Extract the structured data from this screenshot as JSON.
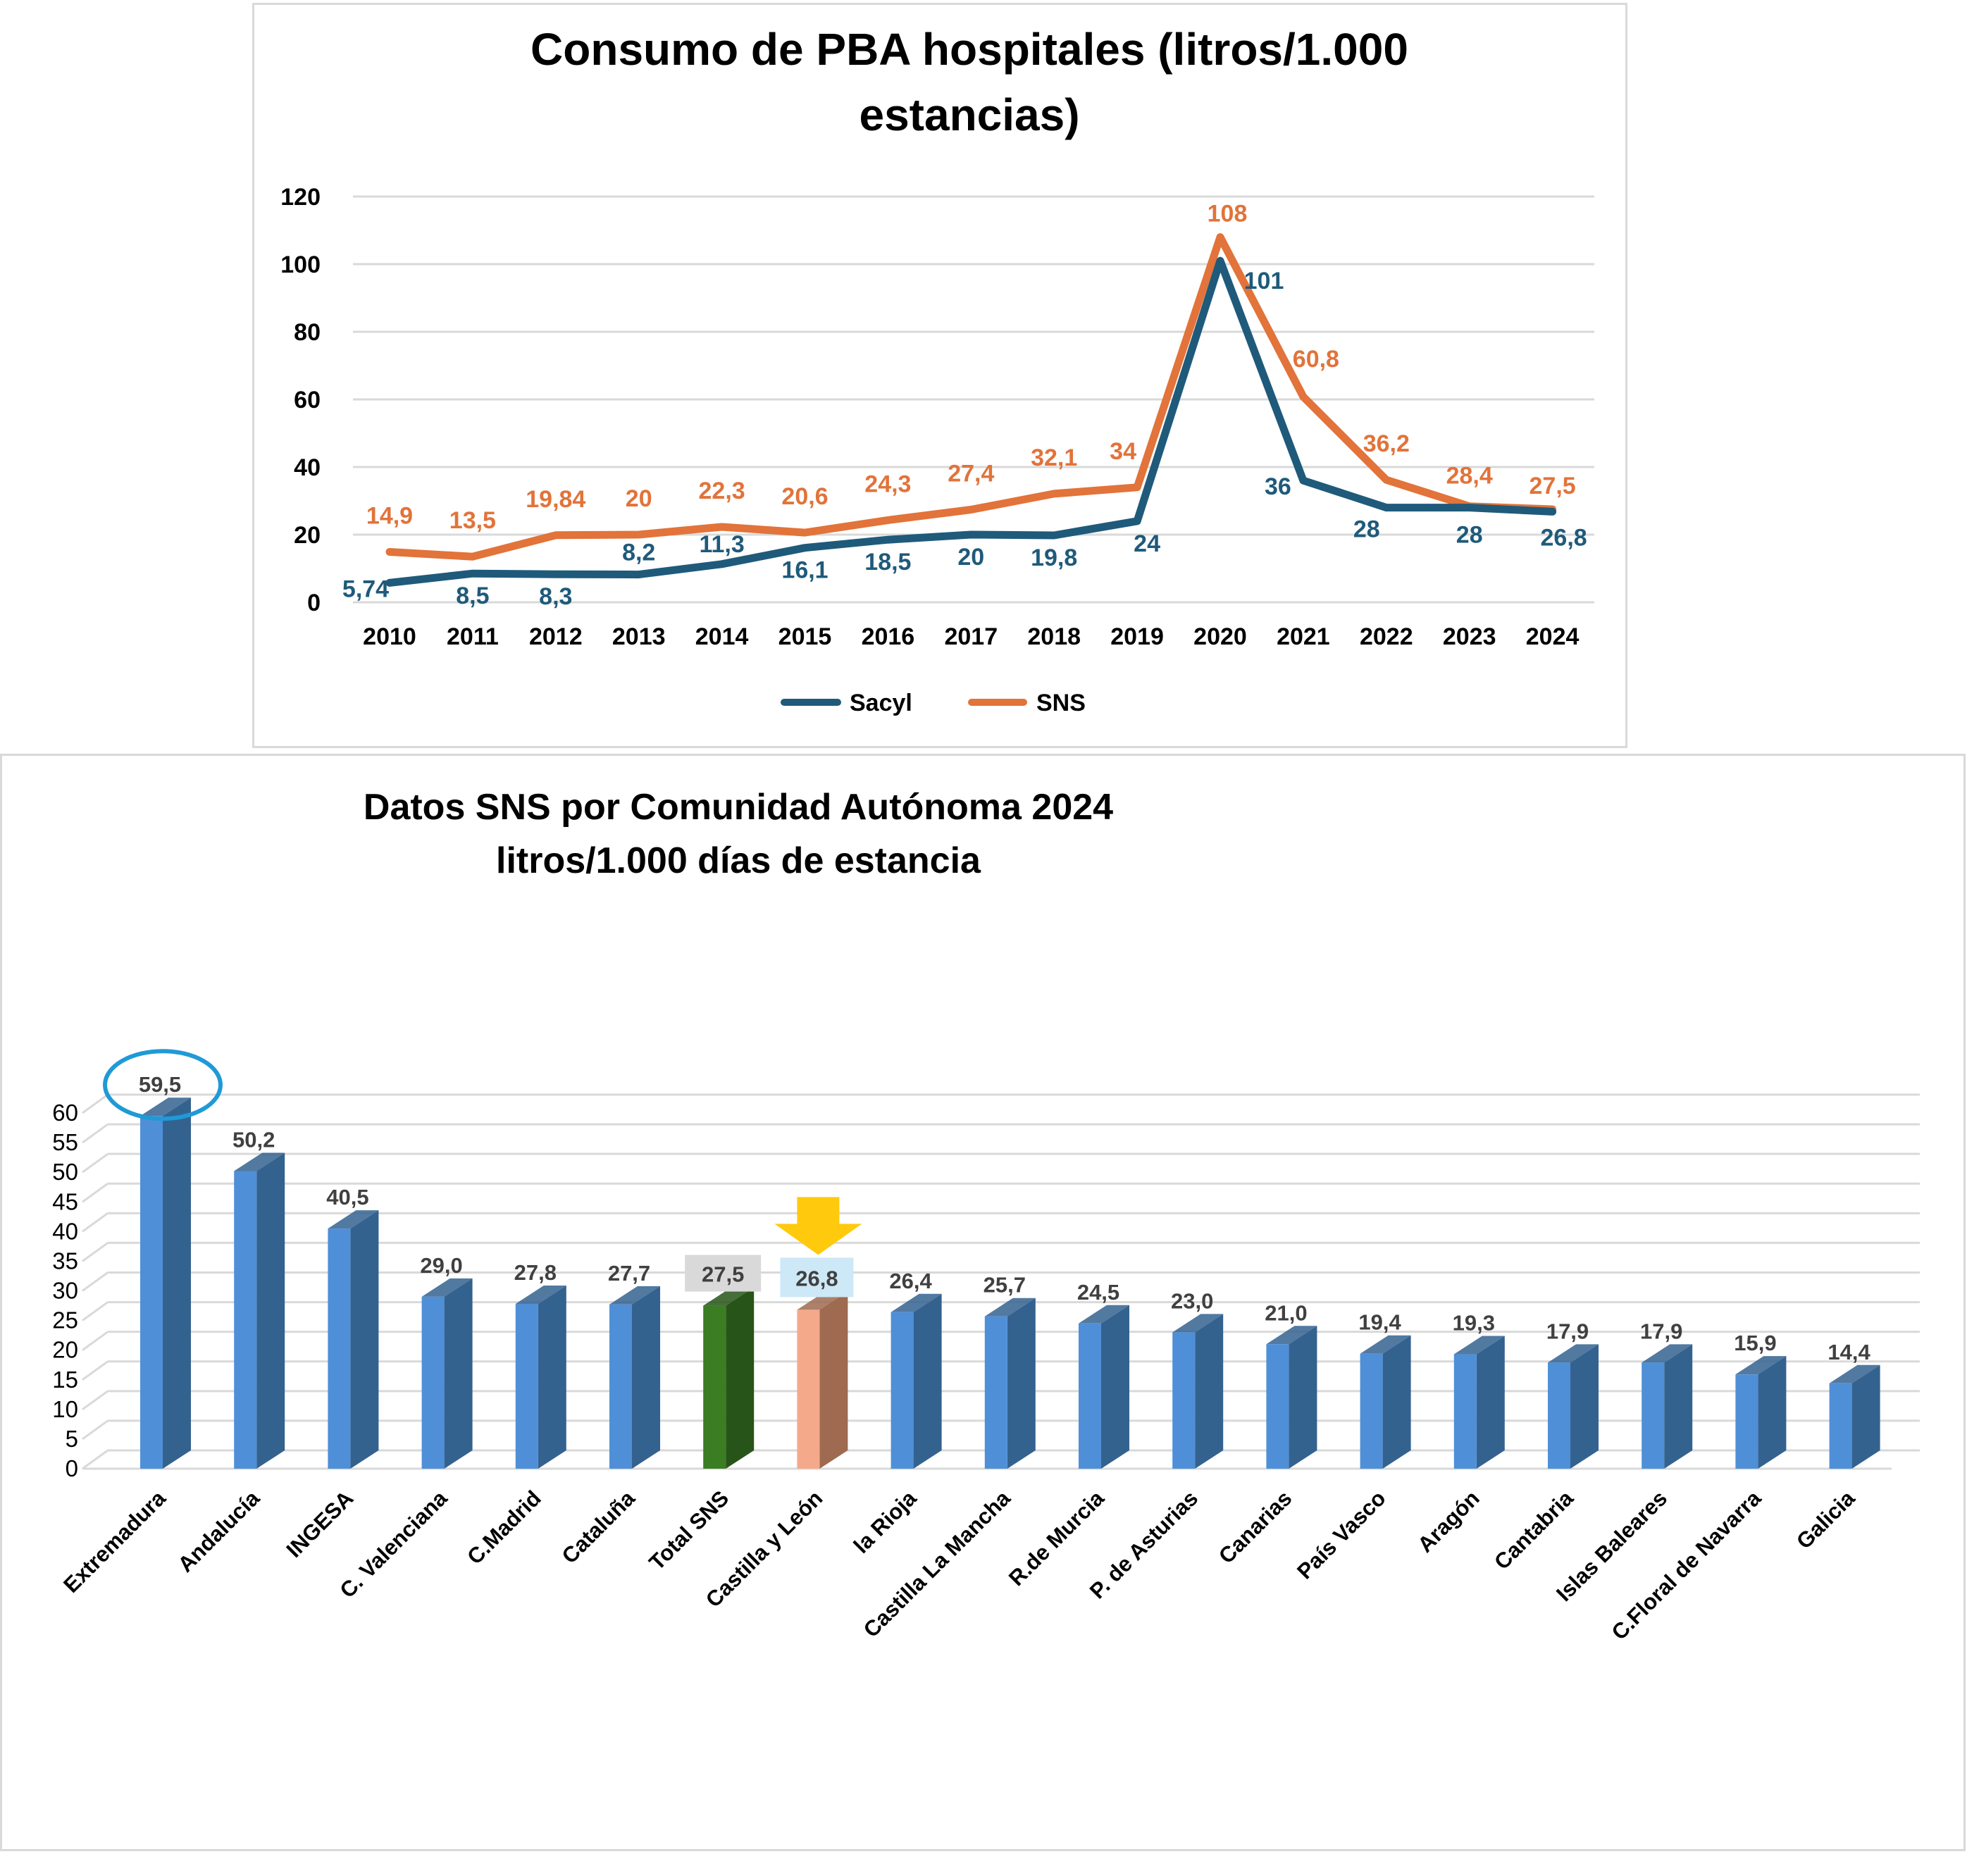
{
  "chart_data": [
    {
      "type": "line",
      "title_lines": [
        "Consumo de PBA hospitales (litros/1.000",
        "estancias)"
      ],
      "xlabel": "",
      "ylabel": "",
      "ylim": [
        0,
        120
      ],
      "yticks": [
        "0",
        "20",
        "40",
        "60",
        "80",
        "100",
        "120"
      ],
      "grid": true,
      "legend_position": "bottom",
      "x": [
        "2010",
        "2011",
        "2012",
        "2013",
        "2014",
        "2015",
        "2016",
        "2017",
        "2018",
        "2019",
        "2020",
        "2021",
        "2022",
        "2023",
        "2024"
      ],
      "series": [
        {
          "name": "Sacyl",
          "color": "#1f5a7a",
          "values": [
            5.74,
            8.5,
            8.3,
            8.2,
            11.3,
            16.1,
            18.5,
            20,
            19.8,
            24,
            101,
            36,
            28,
            28,
            26.8
          ],
          "labels": [
            "5,74",
            "8,5",
            "8,3",
            "8,2",
            "11,3",
            "16,1",
            "18,5",
            "20",
            "19,8",
            "24",
            "101",
            "36",
            "28",
            "28",
            "26,8"
          ]
        },
        {
          "name": "SNS",
          "color": "#e2733a",
          "values": [
            14.9,
            13.5,
            19.84,
            20,
            22.3,
            20.6,
            24.3,
            27.4,
            32.1,
            34,
            108,
            60.8,
            36.2,
            28.4,
            27.5
          ],
          "labels": [
            "14,9",
            "13,5",
            "19,84",
            "20",
            "22,3",
            "20,6",
            "24,3",
            "27,4",
            "32,1",
            "34",
            "108",
            "60,8",
            "36,2",
            "28,4",
            "27,5"
          ]
        }
      ]
    },
    {
      "type": "bar",
      "title_lines": [
        "Datos SNS por Comunidad Autónoma 2024",
        "litros/1.000  días de estancia"
      ],
      "xlabel": "",
      "ylabel": "",
      "ylim": [
        0,
        60
      ],
      "yticks": [
        "0",
        "5",
        "10",
        "15",
        "20",
        "25",
        "30",
        "35",
        "40",
        "45",
        "50",
        "55",
        "60"
      ],
      "grid": true,
      "categories": [
        "Extremadura",
        "Andalucía",
        "INGESA",
        "C. Valenciana",
        "C.Madrid",
        "Cataluña",
        "Total SNS",
        "Castilla y León",
        "la Rioja",
        "Castilla La Mancha",
        "R.de Murcia",
        "P. de Asturias",
        "Canarias",
        "País Vasco",
        "Aragón",
        "Cantabria",
        "Islas Baleares",
        "C.Floral de Navarra",
        "Galicia"
      ],
      "values": [
        59.5,
        50.2,
        40.5,
        29.0,
        27.8,
        27.7,
        27.5,
        26.8,
        26.4,
        25.7,
        24.5,
        23.0,
        21.0,
        19.4,
        19.3,
        17.9,
        17.9,
        15.9,
        14.4
      ],
      "labels": [
        "59,5",
        "50,2",
        "40,5",
        "29,0",
        "27,8",
        "27,7",
        "27,5",
        "26,8",
        "26,4",
        "25,7",
        "24,5",
        "23,0",
        "21,0",
        "19,4",
        "19,3",
        "17,9",
        "17,9",
        "15,9",
        "14,4"
      ],
      "colors": {
        "default_front": "#4f8fd8",
        "default_side": "#34628f",
        "total_front": "#3a7d22",
        "total_side": "#275418",
        "cyl_front": "#f4a98a",
        "cyl_side": "#9e6a50",
        "highlight_circle": "#1f9ad6",
        "arrow": "#ffc90e",
        "total_label_bg": "#d9d9d9",
        "cyl_label_bg": "#cde8f6"
      },
      "highlights": {
        "circled": "Extremadura",
        "arrow": "Castilla y León",
        "boxed_gray": "Total SNS",
        "boxed_blue": "Castilla y León"
      }
    }
  ]
}
